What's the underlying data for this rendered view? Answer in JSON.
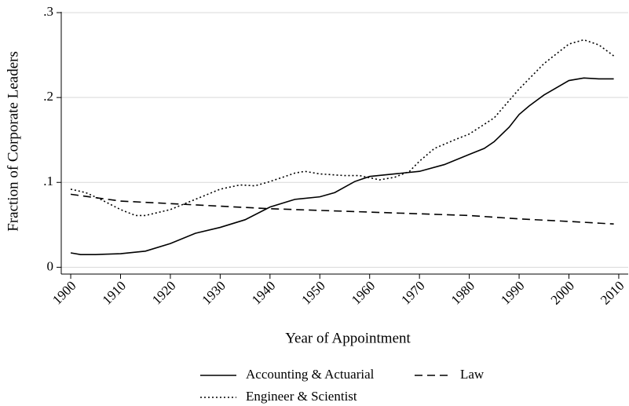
{
  "chart_data": {
    "type": "line",
    "xlabel": "Year of Appointment",
    "ylabel": "Fraction of Corporate Leaders",
    "xlim": [
      1898.1,
      2011.9
    ],
    "ylim": [
      -0.008,
      0.301
    ],
    "xticks": [
      1900,
      1910,
      1920,
      1930,
      1940,
      1950,
      1960,
      1970,
      1980,
      1990,
      2000,
      2010
    ],
    "yticks": [
      0,
      {
        "value": 0.1,
        "label": ".1"
      },
      {
        "value": 0.2,
        "label": ".2"
      },
      {
        "value": 0.3,
        "label": ".3"
      }
    ],
    "grid": true,
    "legend": "bottom",
    "series": [
      {
        "name": "Accounting & Actuarial",
        "color": "#000000",
        "dash": "solid",
        "x": [
          1900,
          1902,
          1905,
          1910,
          1915,
          1920,
          1925,
          1930,
          1935,
          1940,
          1945,
          1950,
          1953,
          1957,
          1960,
          1965,
          1970,
          1975,
          1980,
          1983,
          1985,
          1988,
          1990,
          1992,
          1995,
          2000,
          2003,
          2006,
          2009
        ],
        "values": [
          0.017,
          0.015,
          0.015,
          0.016,
          0.019,
          0.028,
          0.04,
          0.047,
          0.056,
          0.071,
          0.08,
          0.083,
          0.088,
          0.101,
          0.107,
          0.11,
          0.113,
          0.121,
          0.133,
          0.14,
          0.148,
          0.165,
          0.18,
          0.19,
          0.203,
          0.22,
          0.223,
          0.222,
          0.222
        ]
      },
      {
        "name": "Law",
        "color": "#000000",
        "dash": "dashed",
        "x": [
          1900,
          1910,
          1920,
          1930,
          1940,
          1950,
          1960,
          1970,
          1980,
          1990,
          2000,
          2009
        ],
        "values": [
          0.086,
          0.078,
          0.075,
          0.072,
          0.069,
          0.067,
          0.065,
          0.063,
          0.061,
          0.057,
          0.054,
          0.051
        ]
      },
      {
        "name": "Engineer & Scientist",
        "color": "#000000",
        "dash": "dotted",
        "x": [
          1900,
          1903,
          1906,
          1910,
          1913,
          1915,
          1920,
          1925,
          1930,
          1934,
          1937,
          1940,
          1945,
          1947,
          1950,
          1955,
          1958,
          1962,
          1965,
          1968,
          1970,
          1973,
          1977,
          1980,
          1985,
          1990,
          1995,
          2000,
          2003,
          2006,
          2009
        ],
        "values": [
          0.092,
          0.088,
          0.08,
          0.068,
          0.061,
          0.061,
          0.068,
          0.08,
          0.092,
          0.097,
          0.096,
          0.101,
          0.111,
          0.113,
          0.11,
          0.108,
          0.108,
          0.103,
          0.106,
          0.113,
          0.125,
          0.14,
          0.15,
          0.157,
          0.176,
          0.21,
          0.24,
          0.263,
          0.268,
          0.262,
          0.249
        ]
      }
    ]
  }
}
